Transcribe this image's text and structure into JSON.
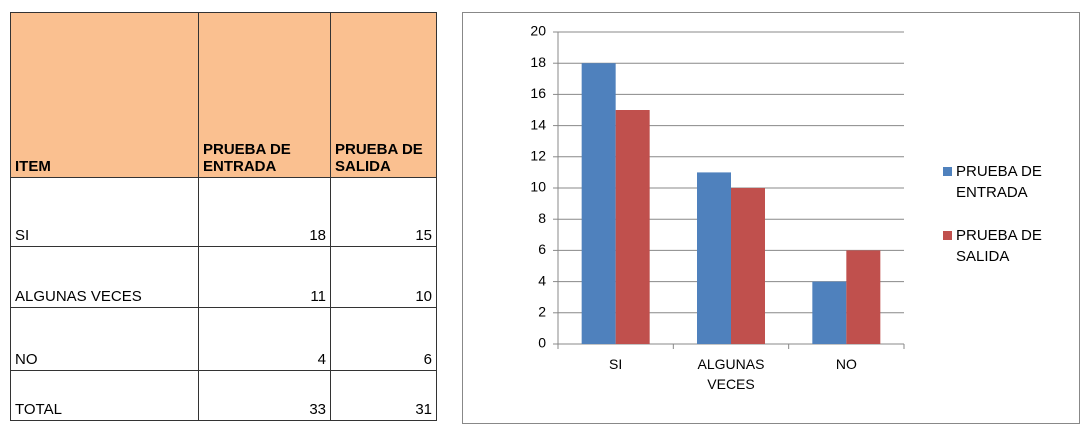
{
  "table": {
    "header": [
      "ITEM",
      "PRUEBA DE ENTRADA",
      "PRUEBA DE SALIDA"
    ],
    "rows": [
      [
        "SI",
        18,
        15
      ],
      [
        "ALGUNAS VECES",
        11,
        10
      ],
      [
        "NO",
        4,
        6
      ],
      [
        "TOTAL",
        33,
        31
      ]
    ]
  },
  "chart_data": {
    "type": "bar",
    "categories": [
      "SI",
      "ALGUNAS VECES",
      "NO"
    ],
    "series": [
      {
        "name": "PRUEBA DE ENTRADA",
        "color": "#4f81bd",
        "values": [
          18,
          11,
          4
        ]
      },
      {
        "name": "PRUEBA DE SALIDA",
        "color": "#c0504d",
        "values": [
          15,
          10,
          6
        ]
      }
    ],
    "ylim": [
      0,
      20
    ],
    "yticks": [
      0,
      2,
      4,
      6,
      8,
      10,
      12,
      14,
      16,
      18,
      20
    ],
    "grid": true,
    "legend": "right"
  }
}
